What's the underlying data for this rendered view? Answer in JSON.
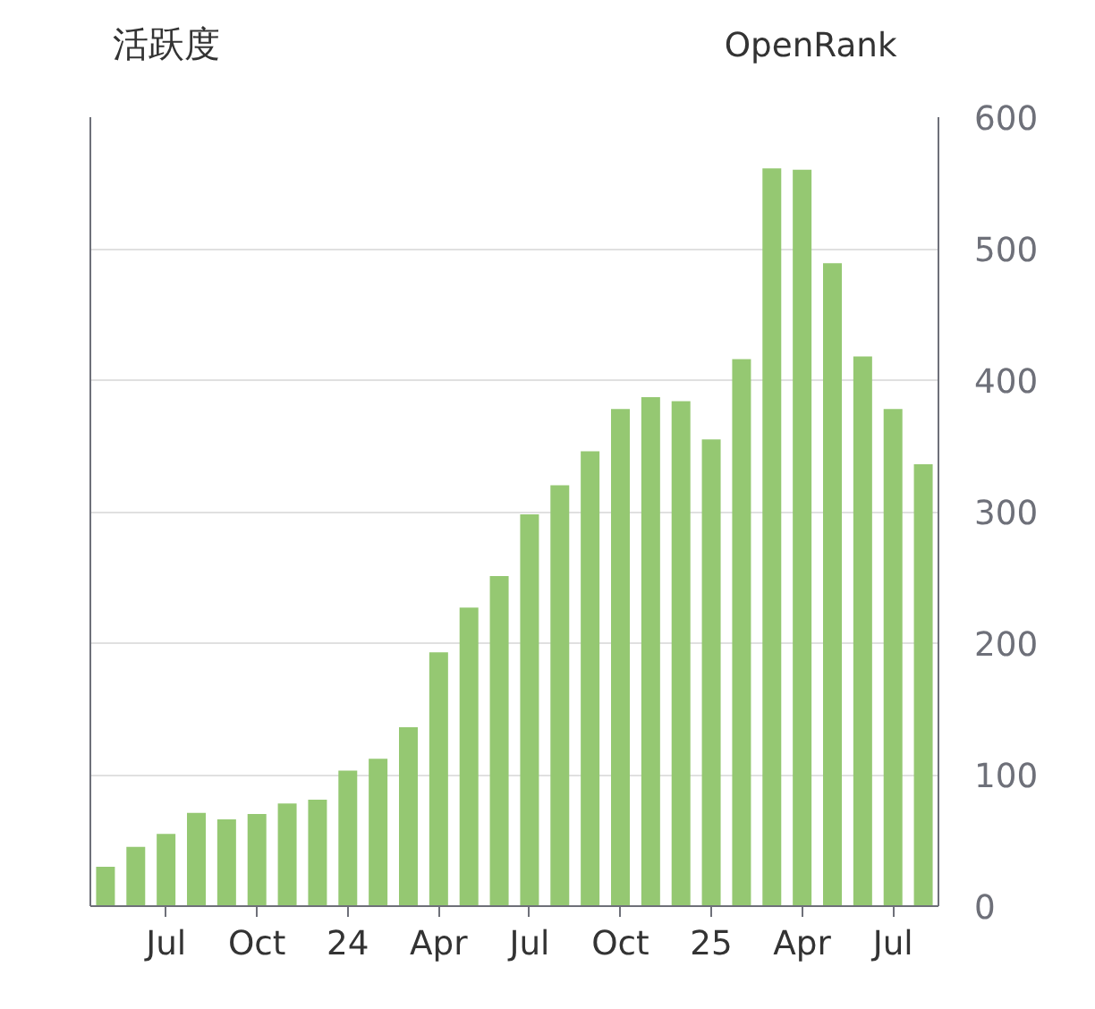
{
  "chart_data": {
    "type": "bar",
    "ylabel": "活跃度",
    "y2label": "OpenRank",
    "categories": [
      null,
      null,
      "Jul",
      null,
      null,
      "Oct",
      null,
      null,
      "24",
      null,
      null,
      "Apr",
      null,
      null,
      "Jul",
      null,
      null,
      "Oct",
      null,
      null,
      "25",
      null,
      null,
      "Apr",
      null,
      null,
      "Jul",
      null
    ],
    "series": [
      {
        "color": "#95c872",
        "axis": "y2",
        "values": [
          30,
          45,
          55,
          71,
          66,
          70,
          78,
          81,
          103,
          112,
          136,
          193,
          227,
          251,
          298,
          320,
          346,
          378,
          387,
          384,
          355,
          416,
          561,
          560,
          489,
          418,
          378,
          336
        ]
      }
    ],
    "y2lim": [
      0,
      600
    ],
    "y2ticks": [
      0,
      100,
      200,
      300,
      400,
      500,
      600
    ],
    "grid": "y"
  }
}
